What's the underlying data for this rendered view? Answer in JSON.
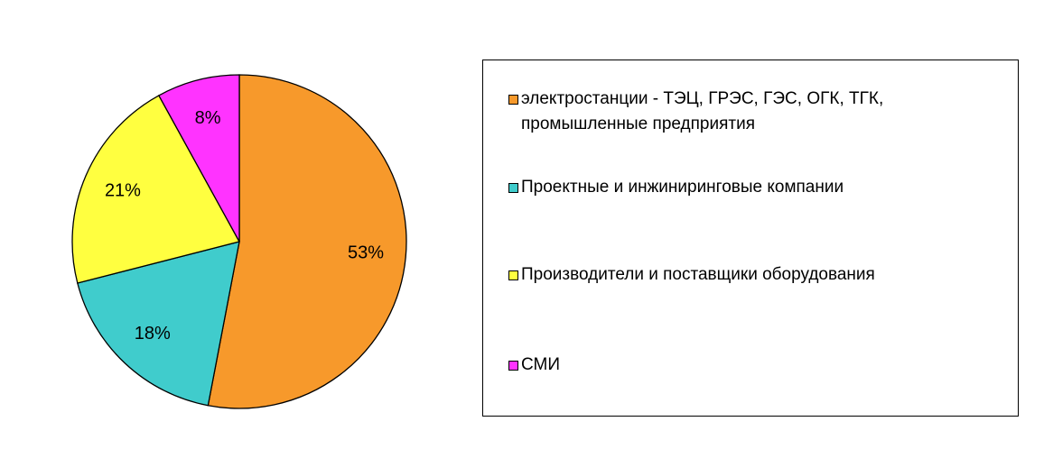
{
  "chart_data": {
    "type": "pie",
    "categories": [
      "электростанции - ТЭЦ, ГРЭС, ГЭС, ОГК,  ТГК, промышленные предприятия",
      "Проектные и инжиниринговые компании",
      "Производители и поставщики  оборудования",
      "СМИ"
    ],
    "values": [
      53,
      18,
      21,
      8
    ],
    "value_labels": [
      "53%",
      "18%",
      "21%",
      "8%"
    ],
    "colors": [
      "#f7992b",
      "#40cccc",
      "#ffff40",
      "#ff33ff"
    ],
    "legend": "right"
  }
}
